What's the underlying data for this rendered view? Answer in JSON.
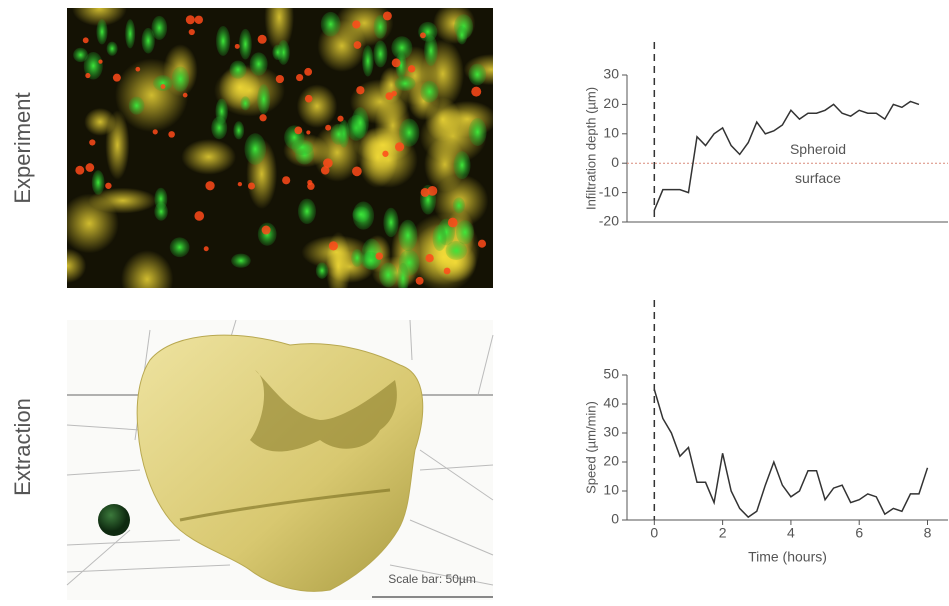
{
  "labels": {
    "experiment": "Experiment",
    "extraction": "Extraction",
    "scale_bar": "Scale bar: 50µm"
  },
  "chart_data": [
    {
      "type": "line",
      "y_label": "Infiltration depth (µm)",
      "annotation_lines": [
        "Spheroid",
        "surface"
      ],
      "hline": 0,
      "hline_color": "#d98a7a",
      "x": [
        0,
        0.25,
        0.5,
        0.75,
        1,
        1.25,
        1.5,
        1.75,
        2,
        2.25,
        2.5,
        2.75,
        3,
        3.25,
        3.5,
        3.75,
        4,
        4.25,
        4.5,
        4.75,
        5,
        5.25,
        5.5,
        5.75,
        6,
        6.25,
        6.5,
        6.75,
        7,
        7.25,
        7.5,
        7.75
      ],
      "values": [
        -16,
        -9,
        -9,
        -9,
        -10,
        9,
        6,
        10,
        12,
        6,
        3,
        7,
        14,
        10,
        11,
        13,
        18,
        15,
        17,
        17,
        18,
        20,
        17,
        16,
        18,
        17,
        17,
        15,
        20,
        19,
        21,
        20
      ],
      "color": "#333333",
      "xlim": [
        -0.8,
        8.6
      ],
      "ylim": [
        -20,
        30
      ],
      "yticks": [
        -20,
        -10,
        0,
        10,
        20,
        30
      ],
      "vline": 0
    },
    {
      "type": "line",
      "y_label": "Speed (µm/min)",
      "x_label": "Time (hours)",
      "x": [
        0,
        0.25,
        0.5,
        0.75,
        1,
        1.25,
        1.5,
        1.75,
        2,
        2.25,
        2.5,
        2.75,
        3,
        3.25,
        3.5,
        3.75,
        4,
        4.25,
        4.5,
        4.75,
        5,
        5.25,
        5.5,
        5.75,
        6,
        6.25,
        6.5,
        6.75,
        7,
        7.25,
        7.5,
        7.75,
        8
      ],
      "values": [
        45,
        35,
        30,
        22,
        25,
        13,
        13,
        6,
        23,
        10,
        4,
        1,
        3,
        12,
        20,
        12,
        8,
        10,
        17,
        17,
        7,
        11,
        12,
        6,
        7,
        9,
        8,
        2,
        4,
        3,
        9,
        9,
        18
      ],
      "color": "#333333",
      "xlim": [
        -0.8,
        8.6
      ],
      "ylim": [
        0,
        50
      ],
      "yticks": [
        0,
        10,
        20,
        30,
        40,
        50
      ],
      "xticks": [
        0,
        2,
        4,
        6,
        8
      ],
      "vline": 0
    }
  ]
}
